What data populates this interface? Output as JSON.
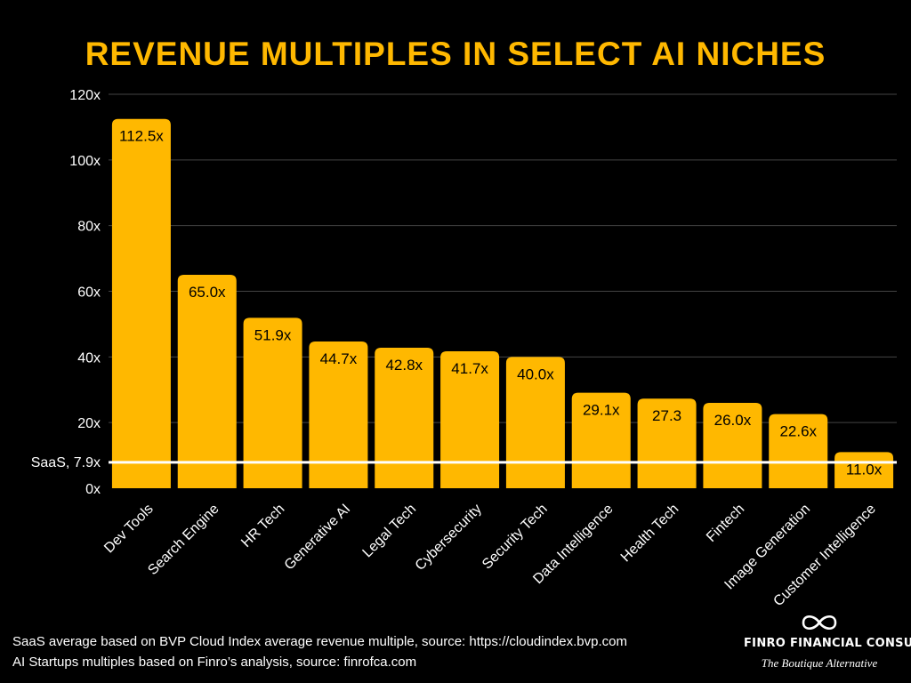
{
  "colors": {
    "background": "#000000",
    "bar": "#FFB800",
    "title": "#FFB800",
    "gridline": "#444444",
    "baseline": "#ffffff"
  },
  "chart_data": {
    "type": "bar",
    "title": "REVENUE MULTIPLES IN SELECT AI NICHES",
    "xlabel": "",
    "ylabel": "",
    "ylim": [
      0,
      120
    ],
    "yticks": [
      0,
      20,
      40,
      60,
      80,
      100,
      120
    ],
    "ytick_labels": [
      "0x",
      "20x",
      "40x",
      "60x",
      "80x",
      "100x",
      "120x"
    ],
    "grid": true,
    "categories": [
      "Dev Tools",
      "Search Engine",
      "HR Tech",
      "Generative AI",
      "Legal Tech",
      "Cybersecurity",
      "Security Tech",
      "Data Intelligence",
      "Health Tech",
      "Fintech",
      "Image Generation",
      "Customer Intelligence"
    ],
    "values": [
      112.5,
      65.0,
      51.9,
      44.7,
      42.8,
      41.7,
      40.0,
      29.1,
      27.3,
      26.0,
      22.6,
      11.0
    ],
    "data_labels": [
      "112.5x",
      "65.0x",
      "51.9x",
      "44.7x",
      "42.8x",
      "41.7x",
      "40.0x",
      "29.1x",
      "27.3",
      "26.0x",
      "22.6x",
      "11.0x"
    ],
    "reference_line": {
      "label": "SaaS, 7.9x",
      "value": 7.9
    }
  },
  "footnotes": [
    "SaaS average based on BVP Cloud Index average revenue multiple, source: https://cloudindex.bvp.com",
    "AI Startups multiples based on Finro’s analysis, source: finrofca.com"
  ],
  "brand": {
    "logo_icon": "infinity-icon",
    "name": "FINRO FINANCIAL CONSULTING",
    "tagline": "The Boutique Alternative"
  }
}
